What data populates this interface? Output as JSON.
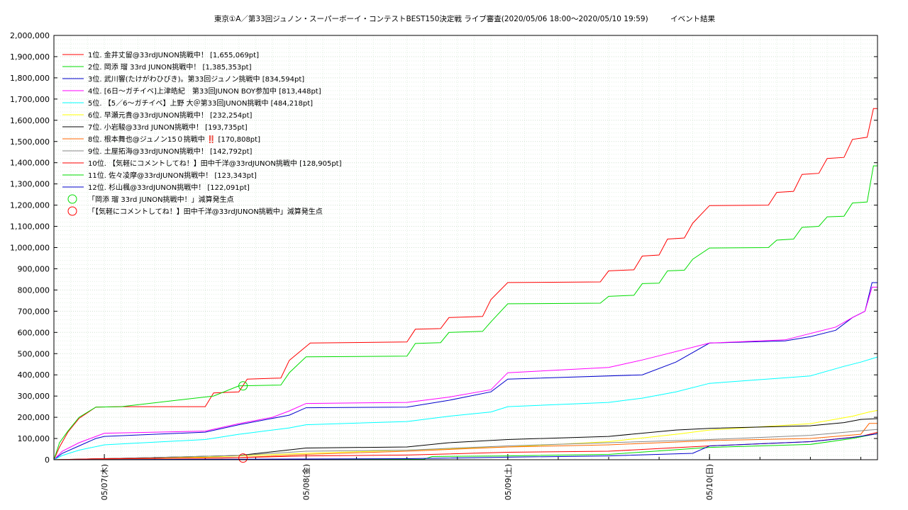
{
  "chart_data": {
    "type": "line",
    "title": "東京①A／第33回ジュノン・スーパーボーイ・コンテストBEST150決定戦 ライブ審査(2020/05/06 18:00〜2020/05/10 19:59)　　　イベント結果",
    "xlabel": "",
    "ylabel": "",
    "x_start": "2020-05-06 18:00",
    "x_end": "2020-05-10 19:59",
    "ylim": [
      0,
      2000000
    ],
    "y_ticks": [
      "0",
      "100,000",
      "200,000",
      "300,000",
      "400,000",
      "500,000",
      "600,000",
      "700,000",
      "800,000",
      "900,000",
      "1,000,000",
      "1,100,000",
      "1,200,000",
      "1,300,000",
      "1,400,000",
      "1,500,000",
      "1,600,000",
      "1,700,000",
      "1,800,000",
      "1,900,000",
      "2,000,000"
    ],
    "x_ticks": [
      {
        "t": "2020-05-07 00:00",
        "label": "05/07(木)"
      },
      {
        "t": "2020-05-08 00:00",
        "label": "05/08(金)"
      },
      {
        "t": "2020-05-09 00:00",
        "label": "05/09(土)"
      },
      {
        "t": "2020-05-10 00:00",
        "label": "05/10(日)"
      }
    ],
    "grid": true,
    "legend_position": "top-left",
    "series": [
      {
        "name": "1位. 金井丈留@33rdJUNON挑戦中！ [1,655,069pt]",
        "color": "#ff0000",
        "points": [
          [
            "05/06 18:00",
            0
          ],
          [
            "05/06 18:40",
            60000
          ],
          [
            "05/06 19:40",
            130000
          ],
          [
            "05/06 21:00",
            195000
          ],
          [
            "05/06 23:00",
            248000
          ],
          [
            "05/07 02:00",
            250000
          ],
          [
            "05/07 12:00",
            250000
          ],
          [
            "05/07 13:00",
            315000
          ],
          [
            "05/07 16:00",
            320000
          ],
          [
            "05/07 17:00",
            380000
          ],
          [
            "05/07 21:00",
            385000
          ],
          [
            "05/07 22:00",
            468000
          ],
          [
            "05/08 00:30",
            550000
          ],
          [
            "05/08 12:00",
            555000
          ],
          [
            "05/08 13:00",
            615000
          ],
          [
            "05/08 16:00",
            618000
          ],
          [
            "05/08 17:00",
            670000
          ],
          [
            "05/08 21:00",
            675000
          ],
          [
            "05/08 22:00",
            755000
          ],
          [
            "05/09 00:00",
            835000
          ],
          [
            "05/09 11:00",
            838000
          ],
          [
            "05/09 12:00",
            890000
          ],
          [
            "05/09 15:00",
            895000
          ],
          [
            "05/09 16:00",
            960000
          ],
          [
            "05/09 18:00",
            965000
          ],
          [
            "05/09 19:00",
            1040000
          ],
          [
            "05/09 21:00",
            1045000
          ],
          [
            "05/09 22:00",
            1115000
          ],
          [
            "05/10 00:00",
            1198000
          ],
          [
            "05/10 07:00",
            1200000
          ],
          [
            "05/10 08:00",
            1260000
          ],
          [
            "05/10 10:00",
            1265000
          ],
          [
            "05/10 11:00",
            1345000
          ],
          [
            "05/10 13:00",
            1350000
          ],
          [
            "05/10 14:00",
            1420000
          ],
          [
            "05/10 16:00",
            1425000
          ],
          [
            "05/10 17:00",
            1510000
          ],
          [
            "05/10 18:45",
            1520000
          ],
          [
            "05/10 19:30",
            1655069
          ],
          [
            "05/10 19:59",
            1655069
          ]
        ]
      },
      {
        "name": "2位. 岡添 瑠 33rd JUNON挑戦中！ [1,385,353pt]",
        "color": "#00dd00",
        "points": [
          [
            "05/06 18:00",
            0
          ],
          [
            "05/06 18:40",
            80000
          ],
          [
            "05/06 19:40",
            135000
          ],
          [
            "05/06 21:00",
            200000
          ],
          [
            "05/06 23:00",
            248000
          ],
          [
            "05/07 02:00",
            250000
          ],
          [
            "05/07 13:00",
            300000
          ],
          [
            "05/07 16:00",
            348000
          ],
          [
            "05/07 21:00",
            352000
          ],
          [
            "05/07 22:00",
            410000
          ],
          [
            "05/08 00:00",
            485000
          ],
          [
            "05/08 12:00",
            488000
          ],
          [
            "05/08 13:00",
            548000
          ],
          [
            "05/08 16:00",
            552000
          ],
          [
            "05/08 17:00",
            600000
          ],
          [
            "05/08 21:00",
            605000
          ],
          [
            "05/08 22:00",
            650000
          ],
          [
            "05/09 00:00",
            735000
          ],
          [
            "05/09 11:00",
            738000
          ],
          [
            "05/09 12:00",
            770000
          ],
          [
            "05/09 15:00",
            775000
          ],
          [
            "05/09 16:00",
            830000
          ],
          [
            "05/09 18:00",
            832000
          ],
          [
            "05/09 19:00",
            890000
          ],
          [
            "05/09 21:00",
            893000
          ],
          [
            "05/09 22:00",
            945000
          ],
          [
            "05/10 00:00",
            998000
          ],
          [
            "05/10 07:00",
            1000000
          ],
          [
            "05/10 08:00",
            1035000
          ],
          [
            "05/10 10:00",
            1040000
          ],
          [
            "05/10 11:00",
            1095000
          ],
          [
            "05/10 13:00",
            1100000
          ],
          [
            "05/10 14:00",
            1145000
          ],
          [
            "05/10 16:00",
            1148000
          ],
          [
            "05/10 17:00",
            1210000
          ],
          [
            "05/10 18:45",
            1215000
          ],
          [
            "05/10 19:30",
            1385353
          ],
          [
            "05/10 19:59",
            1385353
          ]
        ]
      },
      {
        "name": "3位. 武川響(たけがわひびき)。第33回ジュノン挑戦中 [834,594pt]",
        "color": "#0000cc",
        "points": [
          [
            "05/06 18:00",
            0
          ],
          [
            "05/06 19:00",
            30000
          ],
          [
            "05/06 21:00",
            65000
          ],
          [
            "05/06 23:00",
            100000
          ],
          [
            "05/07 00:00",
            110000
          ],
          [
            "05/07 12:00",
            130000
          ],
          [
            "05/07 16:00",
            165000
          ],
          [
            "05/07 22:00",
            210000
          ],
          [
            "05/08 00:00",
            245000
          ],
          [
            "05/08 12:00",
            248000
          ],
          [
            "05/08 17:00",
            280000
          ],
          [
            "05/08 22:00",
            320000
          ],
          [
            "05/09 00:00",
            380000
          ],
          [
            "05/09 16:00",
            400000
          ],
          [
            "05/09 20:00",
            460000
          ],
          [
            "05/10 00:00",
            550000
          ],
          [
            "05/10 09:00",
            560000
          ],
          [
            "05/10 12:00",
            580000
          ],
          [
            "05/10 15:00",
            610000
          ],
          [
            "05/10 17:00",
            670000
          ],
          [
            "05/10 18:30",
            700000
          ],
          [
            "05/10 19:20",
            834594
          ],
          [
            "05/10 19:59",
            834594
          ]
        ]
      },
      {
        "name": "4位. [6日〜ガチイベ]上津皓紀　第33回JUNON BOY参加中 [813,448pt]",
        "color": "#ff00ff",
        "points": [
          [
            "05/06 18:00",
            0
          ],
          [
            "05/06 19:00",
            40000
          ],
          [
            "05/06 21:00",
            80000
          ],
          [
            "05/06 23:00",
            110000
          ],
          [
            "05/07 00:00",
            125000
          ],
          [
            "05/07 12:00",
            135000
          ],
          [
            "05/07 16:00",
            170000
          ],
          [
            "05/07 20:00",
            200000
          ],
          [
            "05/07 22:00",
            230000
          ],
          [
            "05/08 00:00",
            265000
          ],
          [
            "05/08 12:00",
            270000
          ],
          [
            "05/08 17:00",
            295000
          ],
          [
            "05/08 22:00",
            330000
          ],
          [
            "05/09 00:00",
            410000
          ],
          [
            "05/09 12:00",
            435000
          ],
          [
            "05/09 16:00",
            470000
          ],
          [
            "05/09 19:00",
            500000
          ],
          [
            "05/10 00:00",
            550000
          ],
          [
            "05/10 09:00",
            565000
          ],
          [
            "05/10 12:00",
            595000
          ],
          [
            "05/10 15:00",
            625000
          ],
          [
            "05/10 17:00",
            670000
          ],
          [
            "05/10 18:30",
            700000
          ],
          [
            "05/10 19:20",
            813448
          ],
          [
            "05/10 19:59",
            813448
          ]
        ]
      },
      {
        "name": "5位. 【5／6〜ガチイベ】上野 大＠第33回JUNON挑戦中 [484,218pt]",
        "color": "#00ffff",
        "points": [
          [
            "05/06 18:00",
            0
          ],
          [
            "05/06 19:00",
            20000
          ],
          [
            "05/06 21:00",
            45000
          ],
          [
            "05/07 00:00",
            70000
          ],
          [
            "05/07 12:00",
            95000
          ],
          [
            "05/07 16:00",
            120000
          ],
          [
            "05/07 22:00",
            150000
          ],
          [
            "05/08 00:00",
            165000
          ],
          [
            "05/08 12:00",
            180000
          ],
          [
            "05/08 17:00",
            205000
          ],
          [
            "05/08 22:00",
            225000
          ],
          [
            "05/09 00:00",
            250000
          ],
          [
            "05/09 12:00",
            270000
          ],
          [
            "05/09 16:00",
            290000
          ],
          [
            "05/09 20:00",
            320000
          ],
          [
            "05/10 00:00",
            360000
          ],
          [
            "05/10 12:00",
            395000
          ],
          [
            "05/10 16:00",
            440000
          ],
          [
            "05/10 18:00",
            460000
          ],
          [
            "05/10 19:59",
            484218
          ]
        ]
      },
      {
        "name": "6位. 早瀬元貴@33rdJUNON挑戦中！ [232,254pt]",
        "color": "#ffff00",
        "points": [
          [
            "05/06 18:00",
            0
          ],
          [
            "05/07 00:00",
            5000
          ],
          [
            "05/07 12:00",
            12000
          ],
          [
            "05/08 00:00",
            30000
          ],
          [
            "05/08 12:00",
            45000
          ],
          [
            "05/09 00:00",
            60000
          ],
          [
            "05/09 12:00",
            85000
          ],
          [
            "05/09 20:00",
            120000
          ],
          [
            "05/10 00:00",
            140000
          ],
          [
            "05/10 12:00",
            170000
          ],
          [
            "05/10 17:00",
            205000
          ],
          [
            "05/10 19:00",
            225000
          ],
          [
            "05/10 19:59",
            232254
          ]
        ]
      },
      {
        "name": "7位. 小岩駿@33rd JUNON挑戦中！ [193,735pt]",
        "color": "#000000",
        "points": [
          [
            "05/06 18:00",
            0
          ],
          [
            "05/07 00:00",
            5000
          ],
          [
            "05/07 16:00",
            20000
          ],
          [
            "05/08 00:00",
            55000
          ],
          [
            "05/08 12:00",
            60000
          ],
          [
            "05/08 17:00",
            80000
          ],
          [
            "05/09 00:00",
            95000
          ],
          [
            "05/09 12:00",
            110000
          ],
          [
            "05/09 20:00",
            140000
          ],
          [
            "05/10 00:00",
            148000
          ],
          [
            "05/10 12:00",
            160000
          ],
          [
            "05/10 16:00",
            175000
          ],
          [
            "05/10 18:00",
            190000
          ],
          [
            "05/10 19:59",
            193735
          ]
        ]
      },
      {
        "name": "8位. 根本舞也@ジュノン15０挑戦中 ‼️ [170,808pt]",
        "color": "#ff6600",
        "points": [
          [
            "05/06 18:00",
            0
          ],
          [
            "05/07 00:00",
            3000
          ],
          [
            "05/07 16:00",
            10000
          ],
          [
            "05/08 00:00",
            25000
          ],
          [
            "05/08 12:00",
            40000
          ],
          [
            "05/09 00:00",
            60000
          ],
          [
            "05/09 12:00",
            70000
          ],
          [
            "05/10 00:00",
            90000
          ],
          [
            "05/10 12:00",
            100000
          ],
          [
            "05/10 18:00",
            120000
          ],
          [
            "05/10 19:00",
            170808
          ],
          [
            "05/10 19:59",
            170808
          ]
        ]
      },
      {
        "name": "9位. 土屋拓海@33rdJUNON挑戦中！ [142,792pt]",
        "color": "#888888",
        "points": [
          [
            "05/06 18:00",
            0
          ],
          [
            "05/07 00:00",
            5000
          ],
          [
            "05/07 16:00",
            20000
          ],
          [
            "05/08 00:00",
            40000
          ],
          [
            "05/08 12:00",
            45000
          ],
          [
            "05/09 00:00",
            65000
          ],
          [
            "05/09 12:00",
            80000
          ],
          [
            "05/10 00:00",
            95000
          ],
          [
            "05/10 12:00",
            115000
          ],
          [
            "05/10 19:00",
            140000
          ],
          [
            "05/10 19:59",
            142792
          ]
        ]
      },
      {
        "name": "10位. 【気軽にコメントしてね！】田中千洋@33rdJUNON挑戦中 [128,905pt]",
        "color": "#ff0000",
        "points": [
          [
            "05/06 18:00",
            0
          ],
          [
            "05/07 00:00",
            5000
          ],
          [
            "05/07 14:00",
            8000
          ],
          [
            "05/08 00:00",
            18000
          ],
          [
            "05/08 12:00",
            22000
          ],
          [
            "05/09 00:00",
            35000
          ],
          [
            "05/09 12:00",
            40000
          ],
          [
            "05/10 00:00",
            65000
          ],
          [
            "05/10 12:00",
            85000
          ],
          [
            "05/10 18:00",
            110000
          ],
          [
            "05/10 19:59",
            128905
          ]
        ]
      },
      {
        "name": "11位. 佐々凌摩@33rdJUNON挑戦中！ [123,343pt]",
        "color": "#00dd00",
        "points": [
          [
            "05/06 18:00",
            0
          ],
          [
            "05/08 14:00",
            2000
          ],
          [
            "05/08 15:00",
            15000
          ],
          [
            "05/09 00:00",
            18000
          ],
          [
            "05/09 12:00",
            25000
          ],
          [
            "05/10 00:00",
            58000
          ],
          [
            "05/10 12:00",
            72000
          ],
          [
            "05/10 17:00",
            100000
          ],
          [
            "05/10 19:59",
            123343
          ]
        ]
      },
      {
        "name": "12位. 杉山楓@33rdJUNON挑戦中！ [122,091pt]",
        "color": "#0000cc",
        "points": [
          [
            "05/06 18:00",
            0
          ],
          [
            "05/07 14:00",
            2000
          ],
          [
            "05/08 12:00",
            5000
          ],
          [
            "05/09 00:00",
            12000
          ],
          [
            "05/09 12:00",
            18000
          ],
          [
            "05/09 22:00",
            30000
          ],
          [
            "05/10 00:00",
            65000
          ],
          [
            "05/10 12:00",
            85000
          ],
          [
            "05/10 17:00",
            105000
          ],
          [
            "05/10 19:59",
            122091
          ]
        ]
      }
    ],
    "markers": [
      {
        "name": "「岡添 瑠 33rd JUNON挑戦中！」減算発生点",
        "color": "#00dd00",
        "t": "05/07 16:30",
        "value": 348000
      },
      {
        "name": "「【気軽にコメントしてね！】田中千洋@33rdJUNON挑戦中」減算発生点",
        "color": "#ff0000",
        "t": "05/07 16:30",
        "value": 8000
      }
    ]
  }
}
